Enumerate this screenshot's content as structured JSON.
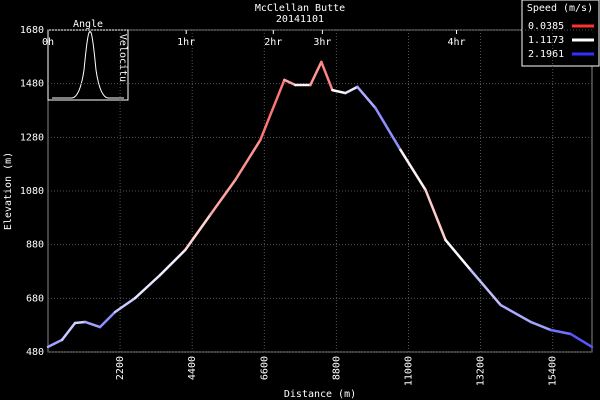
{
  "chart_data": {
    "type": "line",
    "title": "McClellan Butte",
    "subtitle": "20141101",
    "x_label": "Distance (m)",
    "y_label": "Elevation (m)",
    "xlim": [
      0,
      16600
    ],
    "ylim": [
      480,
      1680
    ],
    "xticks": [
      2200,
      4400,
      6600,
      8800,
      11000,
      13200,
      15400
    ],
    "yticks": [
      480,
      680,
      880,
      1080,
      1280,
      1480,
      1680
    ],
    "x2ticks": [
      {
        "value": 0,
        "label": "0h"
      },
      {
        "value": 4217,
        "label": "1hr"
      },
      {
        "value": 6875,
        "label": "2hr"
      },
      {
        "value": 8372,
        "label": "3hr"
      },
      {
        "value": 12467,
        "label": "4hr"
      }
    ],
    "grid": true,
    "inset": {
      "title": "Angle",
      "side_label": "Velocitu"
    },
    "legend": {
      "title": "Speed (m/s)",
      "position": "top-right",
      "items": [
        {
          "value": 0.0385,
          "color": "#ff3030"
        },
        {
          "value": 1.1173,
          "color": "#ffffff"
        },
        {
          "value": 2.1961,
          "color": "#3030ff"
        }
      ]
    },
    "x": [
      0,
      428,
      825,
      1131,
      1589,
      2047,
      2658,
      3422,
      4187,
      4951,
      5715,
      6479,
      7213,
      7548,
      8006,
      8342,
      8678,
      9075,
      9442,
      9993,
      10757,
      11521,
      12132,
      12896,
      13813,
      14730,
      15341,
      15952,
      16600
    ],
    "values": [
      499,
      525,
      588,
      592,
      573,
      629,
      681,
      767,
      860,
      991,
      1121,
      1270,
      1494,
      1475,
      1475,
      1561,
      1456,
      1445,
      1468,
      1389,
      1233,
      1084,
      897,
      786,
      655,
      592,
      562,
      547,
      499
    ],
    "speeds": [
      1.7,
      1.5,
      1.3,
      1.4,
      1.8,
      1.6,
      1.2,
      1.3,
      1.1,
      0.7,
      0.6,
      0.5,
      0.3,
      1.0,
      1.1,
      0.04,
      0.9,
      1.3,
      1.2,
      1.9,
      1.5,
      0.6,
      1.1,
      1.2,
      1.7,
      1.4,
      1.8,
      1.9,
      2.1
    ]
  }
}
